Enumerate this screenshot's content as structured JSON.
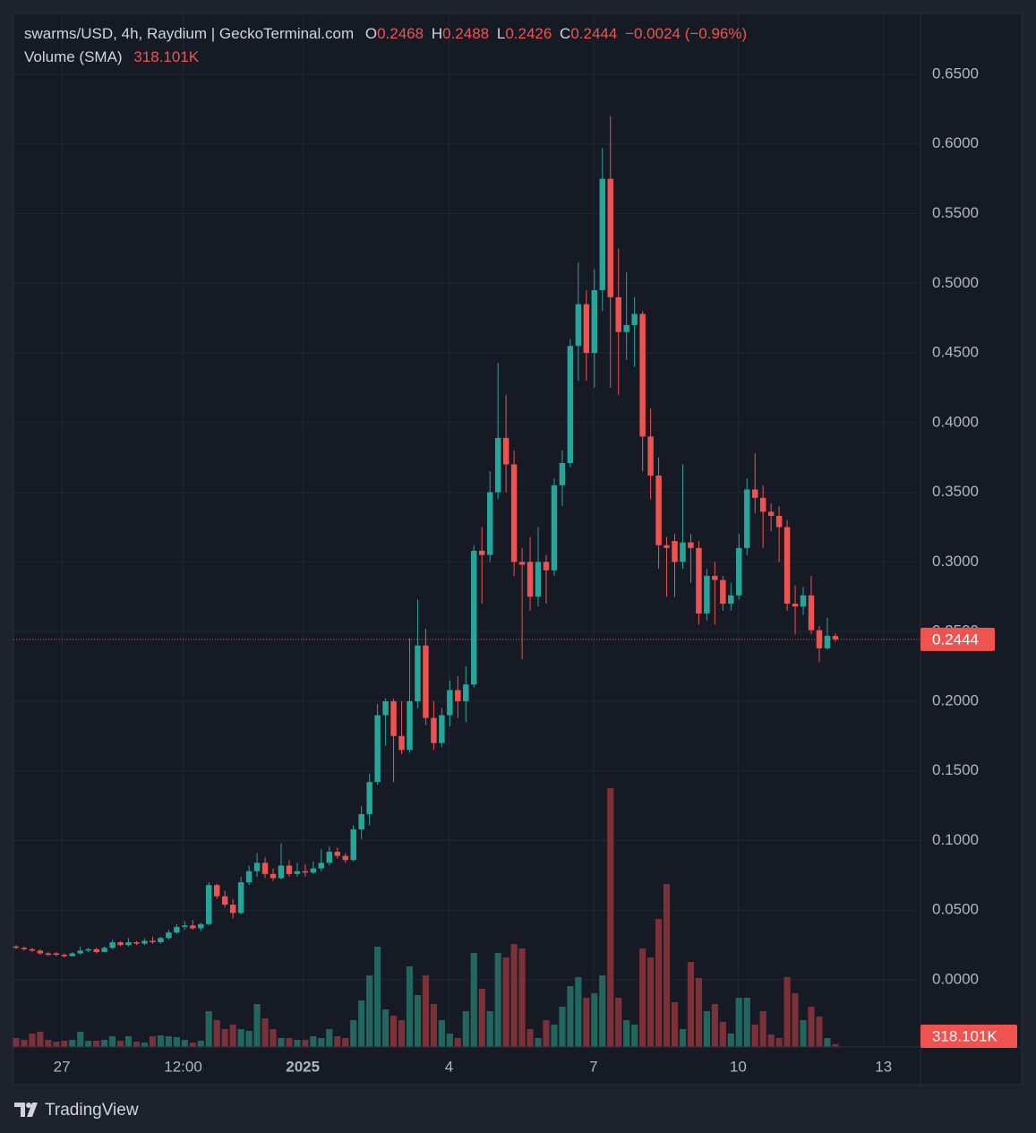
{
  "chart_data": {
    "type": "candlestick",
    "title": "swarms/USD, 4h, Raydium | GeckoTerminal.com",
    "open_label": "O",
    "high_label": "H",
    "low_label": "L",
    "close_label": "C",
    "change_label": "−0.0024 (−0.96%)",
    "volume_title": "Volume (SMA)",
    "brand": "TradingView",
    "up_color": "#26a69a",
    "down_color": "#ef5350",
    "volume_up_color": "#22675e",
    "volume_down_color": "#7c3038",
    "grid": true,
    "categories": [
      null,
      null,
      null,
      null,
      null,
      null,
      null,
      null,
      null,
      null,
      null,
      null,
      null,
      null,
      null,
      null,
      null,
      null,
      null,
      null,
      null,
      null,
      null,
      null,
      null,
      null,
      null,
      null,
      null,
      null,
      null,
      null,
      null,
      null,
      null,
      null,
      null,
      null,
      null,
      null,
      null,
      null,
      null,
      null,
      null,
      null,
      null,
      null,
      null,
      null,
      null,
      null,
      null,
      null,
      null,
      null,
      null,
      null,
      null,
      null,
      null,
      null,
      null,
      null,
      null,
      null,
      null,
      null,
      null,
      null,
      null,
      null,
      null,
      null,
      null,
      null,
      null,
      null,
      null,
      null,
      null,
      null,
      null,
      null,
      null,
      null,
      null,
      null,
      null,
      null,
      null,
      null,
      null,
      null,
      null,
      null,
      null,
      null,
      null,
      null,
      null,
      null,
      null
    ],
    "open": [
      0.024,
      0.023,
      0.022,
      0.021,
      0.019,
      0.019,
      0.018,
      0.017,
      0.019,
      0.021,
      0.022,
      0.02,
      0.023,
      0.027,
      0.025,
      0.027,
      0.026,
      0.028,
      0.027,
      0.03,
      0.034,
      0.038,
      0.039,
      0.037,
      0.04,
      0.068,
      0.06,
      0.054,
      0.048,
      0.07,
      0.078,
      0.084,
      0.076,
      0.073,
      0.082,
      0.076,
      0.078,
      0.077,
      0.08,
      0.084,
      0.092,
      0.089,
      0.086,
      0.108,
      0.119,
      0.142,
      0.19,
      0.2,
      0.175,
      0.165,
      0.2,
      0.24,
      0.188,
      0.17,
      0.19,
      0.208,
      0.2,
      0.212,
      0.308,
      0.305,
      0.35,
      0.389,
      0.37,
      0.3,
      0.3,
      0.275,
      0.3,
      0.294,
      0.355,
      0.371,
      0.455,
      0.485,
      0.45,
      0.495,
      0.575,
      0.49,
      0.465,
      0.47,
      0.478,
      0.39,
      0.362,
      0.312,
      0.315,
      0.3,
      0.314,
      0.31,
      0.263,
      0.29,
      0.287,
      0.27,
      0.276,
      0.31,
      0.352,
      0.346,
      0.336,
      0.333,
      0.325,
      0.27,
      0.268,
      0.276,
      0.251,
      0.238,
      0.2468
    ],
    "high": [
      0.025,
      0.024,
      0.023,
      0.022,
      0.02,
      0.02,
      0.019,
      0.02,
      0.024,
      0.023,
      0.023,
      0.024,
      0.029,
      0.028,
      0.03,
      0.028,
      0.03,
      0.031,
      0.031,
      0.036,
      0.04,
      0.042,
      0.043,
      0.041,
      0.07,
      0.069,
      0.064,
      0.058,
      0.074,
      0.082,
      0.091,
      0.088,
      0.08,
      0.098,
      0.086,
      0.084,
      0.083,
      0.085,
      0.094,
      0.096,
      0.095,
      0.091,
      0.111,
      0.125,
      0.148,
      0.198,
      0.202,
      0.202,
      0.2,
      0.245,
      0.273,
      0.252,
      0.2,
      0.195,
      0.215,
      0.218,
      0.225,
      0.312,
      0.325,
      0.365,
      0.443,
      0.42,
      0.38,
      0.31,
      0.318,
      0.325,
      0.305,
      0.36,
      0.38,
      0.46,
      0.515,
      0.495,
      0.51,
      0.597,
      0.62,
      0.525,
      0.508,
      0.49,
      0.48,
      0.41,
      0.375,
      0.318,
      0.32,
      0.37,
      0.32,
      0.315,
      0.295,
      0.3,
      0.29,
      0.285,
      0.32,
      0.36,
      0.378,
      0.355,
      0.342,
      0.34,
      0.33,
      0.283,
      0.282,
      0.29,
      0.254,
      0.26,
      0.2488
    ],
    "low": [
      0.022,
      0.021,
      0.02,
      0.018,
      0.017,
      0.017,
      0.016,
      0.017,
      0.018,
      0.02,
      0.019,
      0.02,
      0.022,
      0.024,
      0.024,
      0.025,
      0.025,
      0.026,
      0.026,
      0.029,
      0.033,
      0.036,
      0.036,
      0.035,
      0.039,
      0.058,
      0.052,
      0.044,
      0.047,
      0.068,
      0.074,
      0.073,
      0.071,
      0.072,
      0.074,
      0.074,
      0.074,
      0.076,
      0.078,
      0.082,
      0.087,
      0.084,
      0.085,
      0.101,
      0.111,
      0.14,
      0.168,
      0.142,
      0.162,
      0.163,
      0.195,
      0.183,
      0.165,
      0.167,
      0.182,
      0.188,
      0.185,
      0.21,
      0.27,
      0.3,
      0.345,
      0.35,
      0.29,
      0.23,
      0.265,
      0.268,
      0.27,
      0.29,
      0.34,
      0.368,
      0.43,
      0.43,
      0.425,
      0.48,
      0.425,
      0.42,
      0.445,
      0.44,
      0.365,
      0.345,
      0.295,
      0.275,
      0.275,
      0.295,
      0.285,
      0.255,
      0.258,
      0.255,
      0.265,
      0.265,
      0.273,
      0.305,
      0.335,
      0.31,
      0.322,
      0.3,
      0.265,
      0.248,
      0.262,
      0.248,
      0.228,
      0.237,
      0.2426
    ],
    "close": [
      0.023,
      0.022,
      0.021,
      0.019,
      0.018,
      0.018,
      0.017,
      0.019,
      0.021,
      0.022,
      0.02,
      0.023,
      0.027,
      0.025,
      0.027,
      0.026,
      0.028,
      0.027,
      0.03,
      0.034,
      0.038,
      0.039,
      0.037,
      0.04,
      0.068,
      0.06,
      0.054,
      0.048,
      0.07,
      0.078,
      0.084,
      0.076,
      0.073,
      0.082,
      0.076,
      0.078,
      0.077,
      0.08,
      0.084,
      0.092,
      0.089,
      0.086,
      0.108,
      0.119,
      0.142,
      0.19,
      0.2,
      0.175,
      0.165,
      0.2,
      0.24,
      0.188,
      0.17,
      0.19,
      0.208,
      0.2,
      0.212,
      0.308,
      0.305,
      0.35,
      0.389,
      0.37,
      0.3,
      0.298,
      0.275,
      0.3,
      0.294,
      0.355,
      0.371,
      0.455,
      0.485,
      0.45,
      0.495,
      0.575,
      0.49,
      0.465,
      0.47,
      0.478,
      0.39,
      0.362,
      0.312,
      0.31,
      0.3,
      0.314,
      0.31,
      0.263,
      0.29,
      0.287,
      0.27,
      0.276,
      0.31,
      0.352,
      0.346,
      0.336,
      0.333,
      0.325,
      0.27,
      0.268,
      0.276,
      0.251,
      0.238,
      0.247,
      0.2444
    ],
    "volume": [
      1000000,
      800000,
      1500000,
      1700000,
      800000,
      600000,
      700000,
      800000,
      1700000,
      700000,
      700000,
      800000,
      1200000,
      700000,
      1200000,
      600000,
      500000,
      1200000,
      1300000,
      1200000,
      1100000,
      800000,
      500000,
      700000,
      4000000,
      3000000,
      2000000,
      2500000,
      2000000,
      1800000,
      4800000,
      3200000,
      2000000,
      1000000,
      1000000,
      800000,
      800000,
      1200000,
      1000000,
      2000000,
      1200000,
      1000000,
      3000000,
      5200000,
      8000000,
      11200000,
      4200000,
      3500000,
      3000000,
      9000000,
      5800000,
      8000000,
      4800000,
      3000000,
      1500000,
      1000000,
      4000000,
      10500000,
      6500000,
      4000000,
      10500000,
      10000000,
      11500000,
      11000000,
      2000000,
      1000000,
      3000000,
      2500000,
      4500000,
      6800000,
      7800000,
      5500000,
      6000000,
      8000000,
      28900000,
      5500000,
      3000000,
      2500000,
      11000000,
      10000000,
      14300000,
      18200000,
      5000000,
      2000000,
      9500000,
      7700000,
      4000000,
      4800000,
      2800000,
      1500000,
      5500000,
      5500000,
      2500000,
      4000000,
      1400000,
      1000000,
      7800000,
      6000000,
      3000000,
      4500000,
      3400000,
      1000000,
      318101
    ],
    "volume_value_labels": [
      null,
      null,
      null,
      null,
      null,
      null,
      null,
      null,
      null,
      null,
      null,
      null,
      null,
      null,
      null,
      null,
      null,
      null,
      null,
      null,
      null,
      null,
      null,
      null,
      null,
      null,
      null,
      null,
      null,
      null,
      null,
      null,
      null,
      null,
      null,
      null,
      null,
      null,
      null,
      null,
      null,
      null,
      null,
      null,
      null,
      null,
      null,
      null,
      null,
      null,
      null,
      null,
      null,
      null,
      null,
      null,
      null,
      null,
      null,
      null,
      null,
      null,
      null,
      null,
      null,
      null,
      null,
      null,
      null,
      null,
      null,
      null,
      null,
      null,
      null,
      null,
      null,
      null,
      null,
      null,
      null,
      null,
      null,
      null,
      null,
      null,
      null,
      null,
      null,
      null,
      null,
      null,
      null,
      null,
      null,
      null,
      null,
      null,
      null,
      null,
      null,
      null,
      "318.101K"
    ],
    "xlim": [
      -0.33,
      112.6
    ],
    "xticks": [
      {
        "value": 5.7,
        "label": "27"
      },
      {
        "value": 20.8,
        "label": "12:00"
      },
      {
        "value": 35.7,
        "label": "2025"
      },
      {
        "value": 53.9,
        "label": "4"
      },
      {
        "value": 71.9,
        "label": "7"
      },
      {
        "value": 89.9,
        "label": "10"
      },
      {
        "value": 108.0,
        "label": "13"
      }
    ],
    "ylim": [
      -0.0482,
      0.6937
    ],
    "yticks": [
      {
        "value": 0,
        "label": "0.0000"
      },
      {
        "value": 0.05,
        "label": "0.0500"
      },
      {
        "value": 0.1,
        "label": "0.1000"
      },
      {
        "value": 0.15,
        "label": "0.1500"
      },
      {
        "value": 0.2,
        "label": "0.2000"
      },
      {
        "value": 0.25,
        "label": "0.2500"
      },
      {
        "value": 0.3,
        "label": "0.3000"
      },
      {
        "value": 0.35,
        "label": "0.3500"
      },
      {
        "value": 0.4,
        "label": "0.4000"
      },
      {
        "value": 0.45,
        "label": "0.4500"
      },
      {
        "value": 0.5,
        "label": "0.5000"
      },
      {
        "value": 0.55,
        "label": "0.5500"
      },
      {
        "value": 0.6,
        "label": "0.6000"
      },
      {
        "value": 0.65,
        "label": "0.6500"
      }
    ]
  }
}
